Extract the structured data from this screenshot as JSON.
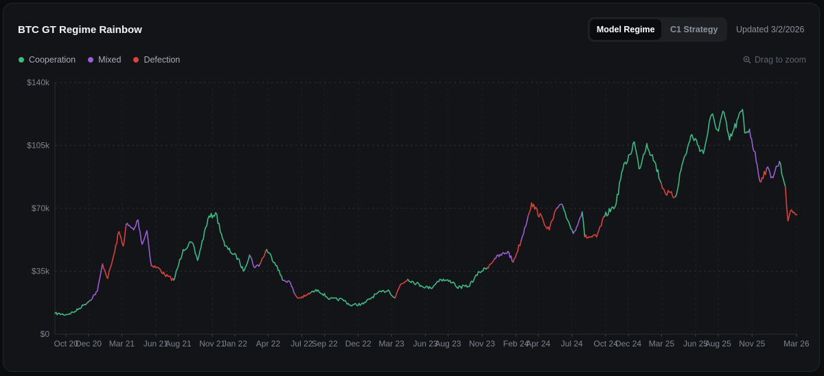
{
  "header": {
    "title": "BTC GT Regime Rainbow",
    "tabs": [
      {
        "label": "Model Regime",
        "active": true
      },
      {
        "label": "C1 Strategy",
        "active": false
      }
    ],
    "updated": "Updated 3/2/2026"
  },
  "legend": [
    {
      "label": "Cooperation",
      "color": "#3fba85",
      "icon": "circle-dot-icon"
    },
    {
      "label": "Mixed",
      "color": "#9a5fd6",
      "icon": "circle-dot-icon"
    },
    {
      "label": "Defection",
      "color": "#d9433d",
      "icon": "circle-dot-icon"
    }
  ],
  "zoom_hint": {
    "label": "Drag to zoom",
    "icon": "zoom-icon"
  },
  "chart_data": {
    "type": "line",
    "title": "BTC GT Regime Rainbow",
    "x_range": [
      "2020-09-01",
      "2026-03-05"
    ],
    "ylim": [
      0,
      140000
    ],
    "y_ticks": [
      {
        "value": 0,
        "label": "$0"
      },
      {
        "value": 35000,
        "label": "$35k"
      },
      {
        "value": 70000,
        "label": "$70k"
      },
      {
        "value": 105000,
        "label": "$105k"
      },
      {
        "value": 140000,
        "label": "$140k"
      }
    ],
    "x_ticks": [
      {
        "date": "2020-10-01",
        "label": "Oct 20"
      },
      {
        "date": "2020-12-01",
        "label": "Dec 20"
      },
      {
        "date": "2021-03-01",
        "label": "Mar 21"
      },
      {
        "date": "2021-06-01",
        "label": "Jun 21"
      },
      {
        "date": "2021-08-01",
        "label": "Aug 21"
      },
      {
        "date": "2021-11-01",
        "label": "Nov 21"
      },
      {
        "date": "2022-01-01",
        "label": "Jan 22"
      },
      {
        "date": "2022-04-01",
        "label": "Apr 22"
      },
      {
        "date": "2022-07-01",
        "label": "Jul 22"
      },
      {
        "date": "2022-09-01",
        "label": "Sep 22"
      },
      {
        "date": "2022-12-01",
        "label": "Dec 22"
      },
      {
        "date": "2023-03-01",
        "label": "Mar 23"
      },
      {
        "date": "2023-06-01",
        "label": "Jun 23"
      },
      {
        "date": "2023-08-01",
        "label": "Aug 23"
      },
      {
        "date": "2023-11-01",
        "label": "Nov 23"
      },
      {
        "date": "2024-02-01",
        "label": "Feb 24"
      },
      {
        "date": "2024-04-01",
        "label": "Apr 24"
      },
      {
        "date": "2024-07-01",
        "label": "Jul 24"
      },
      {
        "date": "2024-10-01",
        "label": "Oct 24"
      },
      {
        "date": "2024-12-01",
        "label": "Dec 24"
      },
      {
        "date": "2025-03-01",
        "label": "Mar 25"
      },
      {
        "date": "2025-06-01",
        "label": "Jun 25"
      },
      {
        "date": "2025-08-01",
        "label": "Aug 25"
      },
      {
        "date": "2025-11-01",
        "label": "Nov 25"
      },
      {
        "date": "2026-03-01",
        "label": "Mar 26"
      }
    ],
    "grid": true,
    "legend_position": "top-left",
    "series": [
      {
        "name": "Cooperation",
        "color": "#3fba85"
      },
      {
        "name": "Mixed",
        "color": "#9a5fd6"
      },
      {
        "name": "Defection",
        "color": "#d9433d"
      }
    ],
    "points": [
      {
        "date": "2020-09-01",
        "price": 11500,
        "regime": "Cooperation"
      },
      {
        "date": "2020-10-01",
        "price": 10800,
        "regime": "Cooperation"
      },
      {
        "date": "2020-10-25",
        "price": 12500,
        "regime": "Cooperation"
      },
      {
        "date": "2020-11-20",
        "price": 16500,
        "regime": "Cooperation"
      },
      {
        "date": "2020-12-05",
        "price": 18800,
        "regime": "Mixed"
      },
      {
        "date": "2020-12-25",
        "price": 24000,
        "regime": "Mixed"
      },
      {
        "date": "2021-01-08",
        "price": 39000,
        "regime": "Defection"
      },
      {
        "date": "2021-01-22",
        "price": 31000,
        "regime": "Defection"
      },
      {
        "date": "2021-02-10",
        "price": 46000,
        "regime": "Defection"
      },
      {
        "date": "2021-02-21",
        "price": 57000,
        "regime": "Defection"
      },
      {
        "date": "2021-03-05",
        "price": 49000,
        "regime": "Defection"
      },
      {
        "date": "2021-03-13",
        "price": 61000,
        "regime": "Mixed"
      },
      {
        "date": "2021-04-02",
        "price": 58000,
        "regime": "Mixed"
      },
      {
        "date": "2021-04-14",
        "price": 63500,
        "regime": "Mixed"
      },
      {
        "date": "2021-04-25",
        "price": 50000,
        "regime": "Mixed"
      },
      {
        "date": "2021-05-08",
        "price": 57500,
        "regime": "Mixed"
      },
      {
        "date": "2021-05-20",
        "price": 38000,
        "regime": "Defection"
      },
      {
        "date": "2021-06-10",
        "price": 36500,
        "regime": "Defection"
      },
      {
        "date": "2021-06-25",
        "price": 33000,
        "regime": "Defection"
      },
      {
        "date": "2021-07-20",
        "price": 30000,
        "regime": "Cooperation"
      },
      {
        "date": "2021-08-14",
        "price": 47000,
        "regime": "Cooperation"
      },
      {
        "date": "2021-09-07",
        "price": 51000,
        "regime": "Cooperation"
      },
      {
        "date": "2021-09-22",
        "price": 41000,
        "regime": "Cooperation"
      },
      {
        "date": "2021-10-20",
        "price": 64000,
        "regime": "Cooperation"
      },
      {
        "date": "2021-11-10",
        "price": 67500,
        "regime": "Cooperation"
      },
      {
        "date": "2021-12-05",
        "price": 49000,
        "regime": "Cooperation"
      },
      {
        "date": "2022-01-10",
        "price": 42000,
        "regime": "Cooperation"
      },
      {
        "date": "2022-01-24",
        "price": 35000,
        "regime": "Cooperation"
      },
      {
        "date": "2022-02-10",
        "price": 44000,
        "regime": "Mixed"
      },
      {
        "date": "2022-02-24",
        "price": 37000,
        "regime": "Mixed"
      },
      {
        "date": "2022-03-10",
        "price": 39000,
        "regime": "Defection"
      },
      {
        "date": "2022-03-28",
        "price": 47000,
        "regime": "Cooperation"
      },
      {
        "date": "2022-04-25",
        "price": 38000,
        "regime": "Cooperation"
      },
      {
        "date": "2022-05-10",
        "price": 30000,
        "regime": "Mixed"
      },
      {
        "date": "2022-05-28",
        "price": 29500,
        "regime": "Mixed"
      },
      {
        "date": "2022-06-13",
        "price": 22000,
        "regime": "Defection"
      },
      {
        "date": "2022-06-20",
        "price": 20000,
        "regime": "Defection"
      },
      {
        "date": "2022-07-10",
        "price": 21000,
        "regime": "Defection"
      },
      {
        "date": "2022-07-25",
        "price": 23000,
        "regime": "Cooperation"
      },
      {
        "date": "2022-08-14",
        "price": 24500,
        "regime": "Cooperation"
      },
      {
        "date": "2022-09-15",
        "price": 19500,
        "regime": "Cooperation"
      },
      {
        "date": "2022-10-20",
        "price": 19200,
        "regime": "Cooperation"
      },
      {
        "date": "2022-11-10",
        "price": 16000,
        "regime": "Cooperation"
      },
      {
        "date": "2022-12-15",
        "price": 16800,
        "regime": "Cooperation"
      },
      {
        "date": "2023-01-20",
        "price": 22500,
        "regime": "Cooperation"
      },
      {
        "date": "2023-02-20",
        "price": 24500,
        "regime": "Cooperation"
      },
      {
        "date": "2023-03-10",
        "price": 20000,
        "regime": "Defection"
      },
      {
        "date": "2023-03-25",
        "price": 27500,
        "regime": "Defection"
      },
      {
        "date": "2023-04-14",
        "price": 30500,
        "regime": "Cooperation"
      },
      {
        "date": "2023-05-20",
        "price": 27000,
        "regime": "Cooperation"
      },
      {
        "date": "2023-06-15",
        "price": 25500,
        "regime": "Cooperation"
      },
      {
        "date": "2023-07-10",
        "price": 30500,
        "regime": "Cooperation"
      },
      {
        "date": "2023-08-15",
        "price": 29000,
        "regime": "Cooperation"
      },
      {
        "date": "2023-08-25",
        "price": 26000,
        "regime": "Cooperation"
      },
      {
        "date": "2023-09-25",
        "price": 26500,
        "regime": "Cooperation"
      },
      {
        "date": "2023-10-25",
        "price": 34500,
        "regime": "Cooperation"
      },
      {
        "date": "2023-11-15",
        "price": 37000,
        "regime": "Defection"
      },
      {
        "date": "2023-12-05",
        "price": 42000,
        "regime": "Mixed"
      },
      {
        "date": "2024-01-10",
        "price": 46000,
        "regime": "Mixed"
      },
      {
        "date": "2024-01-24",
        "price": 40000,
        "regime": "Defection"
      },
      {
        "date": "2024-02-15",
        "price": 52000,
        "regime": "Mixed"
      },
      {
        "date": "2024-03-05",
        "price": 66000,
        "regime": "Defection"
      },
      {
        "date": "2024-03-14",
        "price": 73000,
        "regime": "Defection"
      },
      {
        "date": "2024-04-15",
        "price": 63000,
        "regime": "Defection"
      },
      {
        "date": "2024-05-01",
        "price": 58000,
        "regime": "Defection"
      },
      {
        "date": "2024-05-21",
        "price": 70000,
        "regime": "Mixed"
      },
      {
        "date": "2024-06-07",
        "price": 71000,
        "regime": "Cooperation"
      },
      {
        "date": "2024-06-25",
        "price": 61000,
        "regime": "Cooperation"
      },
      {
        "date": "2024-07-05",
        "price": 56000,
        "regime": "Mixed"
      },
      {
        "date": "2024-07-29",
        "price": 68000,
        "regime": "Cooperation"
      },
      {
        "date": "2024-08-05",
        "price": 54000,
        "regime": "Defection"
      },
      {
        "date": "2024-09-06",
        "price": 54000,
        "regime": "Defection"
      },
      {
        "date": "2024-09-28",
        "price": 65500,
        "regime": "Cooperation"
      },
      {
        "date": "2024-10-29",
        "price": 72500,
        "regime": "Cooperation"
      },
      {
        "date": "2024-11-13",
        "price": 90000,
        "regime": "Cooperation"
      },
      {
        "date": "2024-12-05",
        "price": 100000,
        "regime": "Cooperation"
      },
      {
        "date": "2024-12-17",
        "price": 107000,
        "regime": "Cooperation"
      },
      {
        "date": "2024-12-30",
        "price": 92000,
        "regime": "Cooperation"
      },
      {
        "date": "2025-01-20",
        "price": 106000,
        "regime": "Cooperation"
      },
      {
        "date": "2025-02-10",
        "price": 96000,
        "regime": "Cooperation"
      },
      {
        "date": "2025-02-28",
        "price": 84000,
        "regime": "Defection"
      },
      {
        "date": "2025-03-10",
        "price": 79000,
        "regime": "Defection"
      },
      {
        "date": "2025-04-08",
        "price": 76500,
        "regime": "Cooperation"
      },
      {
        "date": "2025-04-25",
        "price": 94000,
        "regime": "Cooperation"
      },
      {
        "date": "2025-05-22",
        "price": 111000,
        "regime": "Cooperation"
      },
      {
        "date": "2025-06-22",
        "price": 100500,
        "regime": "Cooperation"
      },
      {
        "date": "2025-07-14",
        "price": 122000,
        "regime": "Cooperation"
      },
      {
        "date": "2025-08-02",
        "price": 113000,
        "regime": "Cooperation"
      },
      {
        "date": "2025-08-14",
        "price": 124000,
        "regime": "Cooperation"
      },
      {
        "date": "2025-09-01",
        "price": 108000,
        "regime": "Cooperation"
      },
      {
        "date": "2025-10-06",
        "price": 125000,
        "regime": "Cooperation"
      },
      {
        "date": "2025-10-12",
        "price": 112000,
        "regime": "Cooperation"
      },
      {
        "date": "2025-10-25",
        "price": 114000,
        "regime": "Mixed"
      },
      {
        "date": "2025-11-15",
        "price": 94000,
        "regime": "Mixed"
      },
      {
        "date": "2025-11-22",
        "price": 85000,
        "regime": "Defection"
      },
      {
        "date": "2025-12-10",
        "price": 92000,
        "regime": "Mixed"
      },
      {
        "date": "2025-12-25",
        "price": 87500,
        "regime": "Mixed"
      },
      {
        "date": "2026-01-14",
        "price": 96000,
        "regime": "Cooperation"
      },
      {
        "date": "2026-01-30",
        "price": 82000,
        "regime": "Defection"
      },
      {
        "date": "2026-02-06",
        "price": 63000,
        "regime": "Defection"
      },
      {
        "date": "2026-02-16",
        "price": 69000,
        "regime": "Defection"
      },
      {
        "date": "2026-03-02",
        "price": 66500,
        "regime": "Defection"
      }
    ]
  }
}
